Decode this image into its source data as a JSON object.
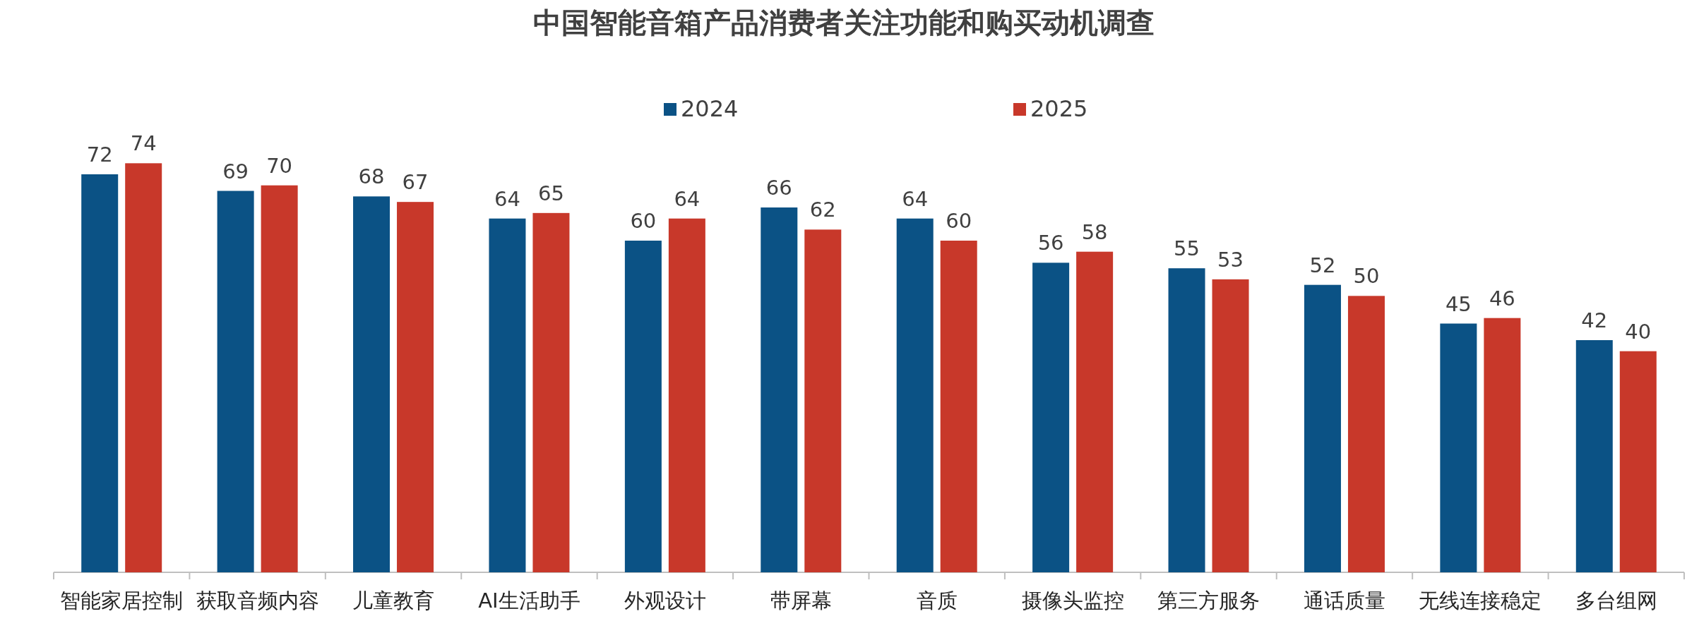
{
  "chart_data": {
    "type": "bar",
    "title": "中国智能音箱产品消费者关注功能和购买动机调查",
    "categories": [
      "智能家居控制",
      "获取音频内容",
      "儿童教育",
      "AI生活助手",
      "外观设计",
      "带屏幕",
      "音质",
      "摄像头监控",
      "第三方服务",
      "通话质量",
      "无线连接稳定",
      "多台组网"
    ],
    "series": [
      {
        "name": "2024",
        "color": "#0b5285",
        "values": [
          72,
          69,
          68,
          64,
          60,
          66,
          64,
          56,
          55,
          52,
          45,
          42
        ]
      },
      {
        "name": "2025",
        "color": "#c8382a",
        "values": [
          74,
          70,
          67,
          65,
          64,
          62,
          60,
          58,
          53,
          50,
          46,
          40
        ]
      }
    ],
    "data_labels": true,
    "legend": "top"
  }
}
